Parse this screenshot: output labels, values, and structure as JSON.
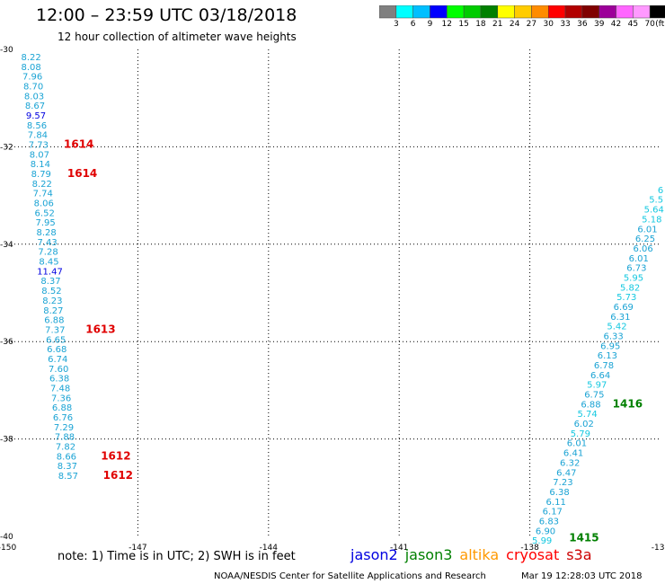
{
  "title": "12:00 – 23:59 UTC 03/18/2018",
  "subtitle": "12 hour collection of altimeter wave heights",
  "colorbar": {
    "unit": "(ft)",
    "ticks": [
      "3",
      "6",
      "9",
      "12",
      "15",
      "18",
      "21",
      "24",
      "27",
      "30",
      "33",
      "36",
      "39",
      "42",
      "45",
      "70"
    ],
    "colors": [
      "#808080",
      "#00ffff",
      "#00bfff",
      "#0000ff",
      "#00ff00",
      "#00cc00",
      "#008000",
      "#ffff00",
      "#ffcc00",
      "#ff8c00",
      "#ff0000",
      "#b20000",
      "#800000",
      "#9c0099",
      "#ff66ff",
      "#ff99ff",
      "#000000"
    ]
  },
  "note": "note:  1) Time is in UTC; 2) SWH is in feet",
  "legend": [
    {
      "name": "jason2",
      "color": "#0000e0"
    },
    {
      "name": "jason3",
      "color": "#008000"
    },
    {
      "name": "altika",
      "color": "#ff9900"
    },
    {
      "name": "cryosat",
      "color": "#ff0000"
    },
    {
      "name": "s3a",
      "color": "#cc0000"
    }
  ],
  "footer": "NOAA/NESDIS Center for Satellite Applications and Research",
  "timestamp": "Mar 19 12:28:03 UTC 2018",
  "chart_data": {
    "type": "scatter",
    "xlim": [
      -150,
      -135
    ],
    "ylim": [
      -40,
      -30
    ],
    "x_ticks": [
      "-150",
      "-147",
      "-144",
      "-141",
      "-138",
      "-135"
    ],
    "y_ticks": [
      "-30",
      "-32",
      "-34",
      "-36",
      "-38",
      "-40"
    ],
    "grid": true,
    "tracks": [
      {
        "name": "west-track",
        "points": [
          {
            "x": -149.45,
            "y": -30.22,
            "v": "8.22",
            "c": "#1aa3d4"
          },
          {
            "x": -149.45,
            "y": -30.42,
            "v": "8.08",
            "c": "#1aa3d4"
          },
          {
            "x": -149.42,
            "y": -30.62,
            "v": "7.96",
            "c": "#1aa3d4"
          },
          {
            "x": -149.4,
            "y": -30.82,
            "v": "8.70",
            "c": "#1aa3d4"
          },
          {
            "x": -149.38,
            "y": -31.02,
            "v": "8.03",
            "c": "#1aa3d4"
          },
          {
            "x": -149.36,
            "y": -31.22,
            "v": "8.67",
            "c": "#1aa3d4"
          },
          {
            "x": -149.34,
            "y": -31.42,
            "v": "9.57",
            "c": "#0000e0"
          },
          {
            "x": -149.32,
            "y": -31.62,
            "v": "8.56",
            "c": "#1aa3d4"
          },
          {
            "x": -149.3,
            "y": -31.82,
            "v": "7.84",
            "c": "#1aa3d4"
          },
          {
            "x": -149.28,
            "y": -32.02,
            "v": "7.73",
            "c": "#1aa3d4"
          },
          {
            "x": -149.26,
            "y": -32.22,
            "v": "8.07",
            "c": "#1aa3d4"
          },
          {
            "x": -149.24,
            "y": -32.42,
            "v": "8.14",
            "c": "#1aa3d4"
          },
          {
            "x": -149.22,
            "y": -32.62,
            "v": "8.79",
            "c": "#1aa3d4"
          },
          {
            "x": -149.2,
            "y": -32.82,
            "v": "8.22",
            "c": "#1aa3d4"
          },
          {
            "x": -149.18,
            "y": -33.02,
            "v": "7.74",
            "c": "#1aa3d4"
          },
          {
            "x": -149.16,
            "y": -33.22,
            "v": "8.06",
            "c": "#1aa3d4"
          },
          {
            "x": -149.14,
            "y": -33.42,
            "v": "6.52",
            "c": "#1aa3d4"
          },
          {
            "x": -149.12,
            "y": -33.62,
            "v": "7.95",
            "c": "#1aa3d4"
          },
          {
            "x": -149.1,
            "y": -33.82,
            "v": "8.28",
            "c": "#1aa3d4"
          },
          {
            "x": -149.08,
            "y": -34.02,
            "v": "7.43",
            "c": "#1aa3d4"
          },
          {
            "x": -149.06,
            "y": -34.22,
            "v": "7.28",
            "c": "#1aa3d4"
          },
          {
            "x": -149.04,
            "y": -34.42,
            "v": "8.45",
            "c": "#1aa3d4"
          },
          {
            "x": -149.02,
            "y": -34.62,
            "v": "11.47",
            "c": "#0000e0"
          },
          {
            "x": -149.0,
            "y": -34.82,
            "v": "8.37",
            "c": "#1aa3d4"
          },
          {
            "x": -148.98,
            "y": -35.02,
            "v": "8.52",
            "c": "#1aa3d4"
          },
          {
            "x": -148.96,
            "y": -35.22,
            "v": "8.23",
            "c": "#1aa3d4"
          },
          {
            "x": -148.94,
            "y": -35.42,
            "v": "8.27",
            "c": "#1aa3d4"
          },
          {
            "x": -148.92,
            "y": -35.62,
            "v": "6.88",
            "c": "#1aa3d4"
          },
          {
            "x": -148.9,
            "y": -35.82,
            "v": "7.37",
            "c": "#1aa3d4"
          },
          {
            "x": -148.88,
            "y": -36.02,
            "v": "6.65",
            "c": "#1aa3d4"
          },
          {
            "x": -148.86,
            "y": -36.22,
            "v": "6.68",
            "c": "#1aa3d4"
          },
          {
            "x": -148.84,
            "y": -36.42,
            "v": "6.74",
            "c": "#1aa3d4"
          },
          {
            "x": -148.82,
            "y": -36.62,
            "v": "7.60",
            "c": "#1aa3d4"
          },
          {
            "x": -148.8,
            "y": -36.82,
            "v": "6.38",
            "c": "#1aa3d4"
          },
          {
            "x": -148.78,
            "y": -37.02,
            "v": "7.48",
            "c": "#1aa3d4"
          },
          {
            "x": -148.76,
            "y": -37.22,
            "v": "7.36",
            "c": "#1aa3d4"
          },
          {
            "x": -148.74,
            "y": -37.42,
            "v": "6.88",
            "c": "#1aa3d4"
          },
          {
            "x": -148.72,
            "y": -37.62,
            "v": "6.76",
            "c": "#1aa3d4"
          },
          {
            "x": -148.7,
            "y": -37.82,
            "v": "7.29",
            "c": "#1aa3d4"
          },
          {
            "x": -148.68,
            "y": -38.02,
            "v": "7.88",
            "c": "#1aa3d4"
          },
          {
            "x": -148.66,
            "y": -38.22,
            "v": "7.82",
            "c": "#1aa3d4"
          },
          {
            "x": -148.64,
            "y": -38.42,
            "v": "8.66",
            "c": "#1aa3d4"
          },
          {
            "x": -148.62,
            "y": -38.62,
            "v": "8.37",
            "c": "#1aa3d4"
          },
          {
            "x": -148.6,
            "y": -38.82,
            "v": "8.57",
            "c": "#1aa3d4"
          }
        ]
      },
      {
        "name": "east-track",
        "points": [
          {
            "x": -135.0,
            "y": -32.95,
            "v": "6",
            "c": "#14c8e0"
          },
          {
            "x": -135.1,
            "y": -33.15,
            "v": "5.5",
            "c": "#14c8e0"
          },
          {
            "x": -135.15,
            "y": -33.35,
            "v": "5.64",
            "c": "#14c8e0"
          },
          {
            "x": -135.2,
            "y": -33.55,
            "v": "5.18",
            "c": "#14c8e0"
          },
          {
            "x": -135.3,
            "y": -33.75,
            "v": "6.01",
            "c": "#1aa3d4"
          },
          {
            "x": -135.35,
            "y": -33.95,
            "v": "6.25",
            "c": "#1aa3d4"
          },
          {
            "x": -135.4,
            "y": -34.15,
            "v": "6.06",
            "c": "#1aa3d4"
          },
          {
            "x": -135.5,
            "y": -34.35,
            "v": "6.01",
            "c": "#1aa3d4"
          },
          {
            "x": -135.55,
            "y": -34.55,
            "v": "6.73",
            "c": "#1aa3d4"
          },
          {
            "x": -135.62,
            "y": -34.75,
            "v": "5.95",
            "c": "#14c8e0"
          },
          {
            "x": -135.7,
            "y": -34.95,
            "v": "5.82",
            "c": "#14c8e0"
          },
          {
            "x": -135.78,
            "y": -35.15,
            "v": "5.73",
            "c": "#14c8e0"
          },
          {
            "x": -135.85,
            "y": -35.35,
            "v": "6.69",
            "c": "#1aa3d4"
          },
          {
            "x": -135.92,
            "y": -35.55,
            "v": "6.31",
            "c": "#1aa3d4"
          },
          {
            "x": -136.0,
            "y": -35.75,
            "v": "5.42",
            "c": "#14c8e0"
          },
          {
            "x": -136.08,
            "y": -35.95,
            "v": "6.33",
            "c": "#1aa3d4"
          },
          {
            "x": -136.15,
            "y": -36.15,
            "v": "6.95",
            "c": "#1aa3d4"
          },
          {
            "x": -136.22,
            "y": -36.35,
            "v": "6.13",
            "c": "#1aa3d4"
          },
          {
            "x": -136.3,
            "y": -36.55,
            "v": "6.78",
            "c": "#1aa3d4"
          },
          {
            "x": -136.38,
            "y": -36.75,
            "v": "6.64",
            "c": "#1aa3d4"
          },
          {
            "x": -136.46,
            "y": -36.95,
            "v": "5.97",
            "c": "#14c8e0"
          },
          {
            "x": -136.52,
            "y": -37.15,
            "v": "6.75",
            "c": "#1aa3d4"
          },
          {
            "x": -136.6,
            "y": -37.35,
            "v": "6.88",
            "c": "#1aa3d4"
          },
          {
            "x": -136.68,
            "y": -37.55,
            "v": "5.74",
            "c": "#14c8e0"
          },
          {
            "x": -136.76,
            "y": -37.75,
            "v": "6.02",
            "c": "#1aa3d4"
          },
          {
            "x": -136.84,
            "y": -37.95,
            "v": "5.79",
            "c": "#14c8e0"
          },
          {
            "x": -136.92,
            "y": -38.15,
            "v": "6.01",
            "c": "#1aa3d4"
          },
          {
            "x": -137.0,
            "y": -38.35,
            "v": "6.41",
            "c": "#1aa3d4"
          },
          {
            "x": -137.08,
            "y": -38.55,
            "v": "6.32",
            "c": "#1aa3d4"
          },
          {
            "x": -137.16,
            "y": -38.75,
            "v": "6.47",
            "c": "#1aa3d4"
          },
          {
            "x": -137.24,
            "y": -38.95,
            "v": "7.23",
            "c": "#1aa3d4"
          },
          {
            "x": -137.32,
            "y": -39.15,
            "v": "6.38",
            "c": "#1aa3d4"
          },
          {
            "x": -137.4,
            "y": -39.35,
            "v": "6.11",
            "c": "#1aa3d4"
          },
          {
            "x": -137.48,
            "y": -39.55,
            "v": "6.17",
            "c": "#1aa3d4"
          },
          {
            "x": -137.56,
            "y": -39.75,
            "v": "6.83",
            "c": "#1aa3d4"
          },
          {
            "x": -137.64,
            "y": -39.95,
            "v": "6.90",
            "c": "#1aa3d4"
          },
          {
            "x": -137.72,
            "y": -40.15,
            "v": "5.99",
            "c": "#14c8e0"
          }
        ]
      }
    ],
    "time_labels": [
      {
        "x": -148.7,
        "y": -32.02,
        "v": "1614",
        "c": "#e00000"
      },
      {
        "x": -148.62,
        "y": -32.62,
        "v": "1614",
        "c": "#e00000"
      },
      {
        "x": -148.2,
        "y": -35.82,
        "v": "1613",
        "c": "#e00000"
      },
      {
        "x": -147.85,
        "y": -38.42,
        "v": "1612",
        "c": "#e00000"
      },
      {
        "x": -147.8,
        "y": -38.82,
        "v": "1612",
        "c": "#e00000"
      },
      {
        "x": -134.9,
        "y": -34.55,
        "v": "14",
        "c": "#008000"
      },
      {
        "x": -136.1,
        "y": -37.35,
        "v": "1416",
        "c": "#008000"
      },
      {
        "x": -137.1,
        "y": -40.1,
        "v": "1415",
        "c": "#008000"
      }
    ]
  }
}
